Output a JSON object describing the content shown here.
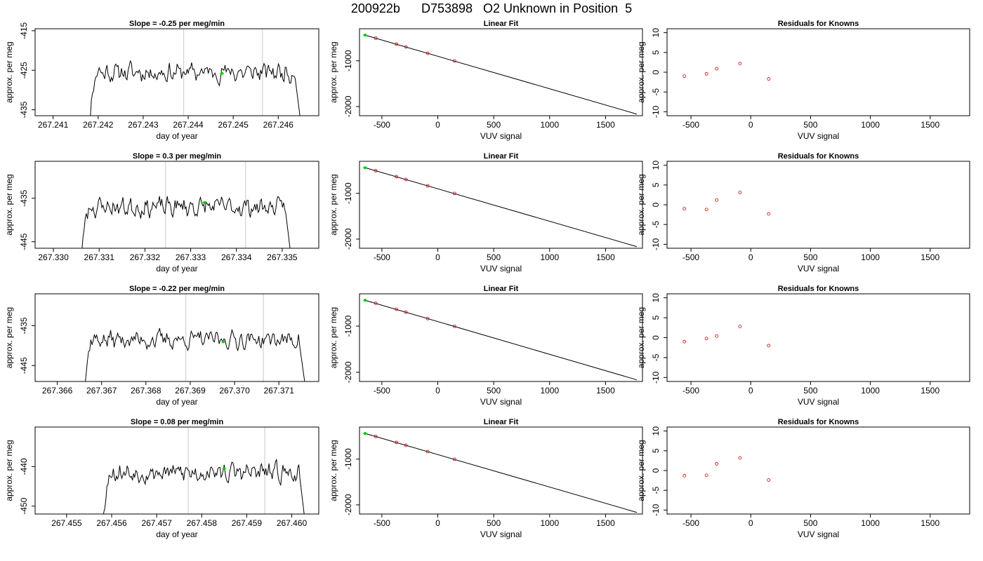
{
  "figure_title": "200922b      D753898   O2 Unknown in Position  5",
  "colors": {
    "trace": "#000000",
    "unknown_point": "#00cc00",
    "known_point": "#cc0000",
    "vline": "#c8c8c8",
    "fit_line": "#000000"
  },
  "chart_data": [
    {
      "id": "r1-time",
      "type": "line",
      "title": "Slope =  -0.25  per meg/min",
      "xlabel": "day of year",
      "ylabel": "approx. per meg",
      "xlim": [
        267.2406,
        267.2469
      ],
      "ylim": [
        -436.5,
        -414.5
      ],
      "xticks": [
        267.241,
        267.242,
        267.243,
        267.244,
        267.245,
        267.246
      ],
      "xtick_labels": [
        "267.241",
        "267.242",
        "267.243",
        "267.244",
        "267.245",
        "267.246"
      ],
      "yticks": [
        -415,
        -425,
        -435
      ],
      "ytick_labels": [
        "-415",
        "-425",
        "-435"
      ],
      "trace": {
        "x_start": 267.2418,
        "x_end": 267.2465,
        "base": -425.5,
        "amp": 3.2,
        "seed": 11
      },
      "vlines": [
        267.2439,
        267.24565
      ],
      "unknown_point": {
        "x": 267.24475,
        "y": -425.8
      }
    },
    {
      "id": "r1-fit",
      "type": "scatter",
      "title": "Linear Fit",
      "xlabel": "VUV signal",
      "ylabel": "approx. per meg",
      "xlim": [
        -700,
        1830
      ],
      "ylim": [
        -2200,
        -300
      ],
      "xticks": [
        -500,
        0,
        500,
        1000,
        1500
      ],
      "xtick_labels": [
        "-500",
        "0",
        "500",
        "1000",
        "1500"
      ],
      "yticks": [
        -1000,
        -2000
      ],
      "ytick_labels": [
        "-1000",
        "-2000"
      ],
      "fit_line": {
        "x": [
          -650,
          1780
        ],
        "y": [
          -440,
          -2165
        ]
      },
      "known_points": {
        "x": [
          -555,
          -370,
          -285,
          -90,
          150
        ],
        "y": [
          -505,
          -636,
          -697,
          -836,
          -1003
        ]
      },
      "unknown_point": {
        "x": -650,
        "y": -440
      }
    },
    {
      "id": "r1-res",
      "type": "scatter",
      "title": "Residuals for Knowns",
      "xlabel": "VUV signal",
      "ylabel": "approx. per meg",
      "xlim": [
        -700,
        1830
      ],
      "ylim": [
        -11,
        11
      ],
      "xticks": [
        -500,
        0,
        500,
        1000,
        1500
      ],
      "xtick_labels": [
        "-500",
        "0",
        "500",
        "1000",
        "1500"
      ],
      "yticks": [
        10,
        5,
        0,
        -5,
        -10
      ],
      "ytick_labels": [
        "10",
        "5",
        "0",
        "-5",
        "-10"
      ],
      "known_points": {
        "x": [
          -555,
          -370,
          -285,
          -90,
          150
        ],
        "y": [
          -1.0,
          -0.4,
          0.9,
          2.2,
          -1.7
        ]
      }
    },
    {
      "id": "r2-time",
      "type": "line",
      "title": "Slope =  0.3  per meg/min",
      "xlabel": "day of year",
      "ylabel": "approx. per meg",
      "xlim": [
        267.3296,
        267.3358
      ],
      "ylim": [
        -446.5,
        -426.5
      ],
      "xticks": [
        267.33,
        267.331,
        267.332,
        267.333,
        267.334,
        267.335
      ],
      "xtick_labels": [
        "267.330",
        "267.331",
        "267.332",
        "267.333",
        "267.334",
        "267.335"
      ],
      "yticks": [
        -435,
        -445
      ],
      "ytick_labels": [
        "-435",
        "-445"
      ],
      "trace": {
        "x_start": 267.3306,
        "x_end": 267.3352,
        "base": -437.0,
        "amp": 3.0,
        "seed": 23
      },
      "vlines": [
        267.33245,
        267.3342
      ],
      "unknown_point": {
        "x": 267.3333,
        "y": -436.0
      }
    },
    {
      "id": "r2-fit",
      "type": "scatter",
      "title": "Linear Fit",
      "xlabel": "VUV signal",
      "ylabel": "approx. per meg",
      "xlim": [
        -700,
        1830
      ],
      "ylim": [
        -2200,
        -300
      ],
      "xticks": [
        -500,
        0,
        500,
        1000,
        1500
      ],
      "xtick_labels": [
        "-500",
        "0",
        "500",
        "1000",
        "1500"
      ],
      "yticks": [
        -1000,
        -2000
      ],
      "ytick_labels": [
        "-1000",
        "-2000"
      ],
      "fit_line": {
        "x": [
          -650,
          1780
        ],
        "y": [
          -440,
          -2165
        ]
      },
      "known_points": {
        "x": [
          -555,
          -370,
          -285,
          -90,
          150
        ],
        "y": [
          -505,
          -636,
          -697,
          -836,
          -1003
        ]
      },
      "unknown_point": {
        "x": -650,
        "y": -440
      }
    },
    {
      "id": "r2-res",
      "type": "scatter",
      "title": "Residuals for Knowns",
      "xlabel": "VUV signal",
      "ylabel": "approx. per meg",
      "xlim": [
        -700,
        1830
      ],
      "ylim": [
        -11,
        11
      ],
      "xticks": [
        -500,
        0,
        500,
        1000,
        1500
      ],
      "xtick_labels": [
        "-500",
        "0",
        "500",
        "1000",
        "1500"
      ],
      "yticks": [
        10,
        5,
        0,
        -5,
        -10
      ],
      "ytick_labels": [
        "10",
        "5",
        "0",
        "-5",
        "-10"
      ],
      "known_points": {
        "x": [
          -555,
          -370,
          -285,
          -90,
          150
        ],
        "y": [
          -1.0,
          -1.2,
          1.2,
          3.1,
          -2.3
        ]
      }
    },
    {
      "id": "r3-time",
      "type": "line",
      "title": "Slope =  -0.22  per meg/min",
      "xlabel": "day of year",
      "ylabel": "approx. per meg",
      "xlim": [
        267.3655,
        267.3719
      ],
      "ylim": [
        -449,
        -427
      ],
      "xticks": [
        267.366,
        267.367,
        267.368,
        267.369,
        267.37,
        267.371
      ],
      "xtick_labels": [
        "267.366",
        "267.367",
        "267.368",
        "267.369",
        "267.370",
        "267.371"
      ],
      "yticks": [
        -435,
        -445
      ],
      "ytick_labels": [
        "-435",
        "-445"
      ],
      "trace": {
        "x_start": 267.3666,
        "x_end": 267.3716,
        "base": -438.5,
        "amp": 3.0,
        "seed": 37
      },
      "vlines": [
        267.3689,
        267.37065
      ],
      "unknown_point": {
        "x": 267.36975,
        "y": -439.0
      }
    },
    {
      "id": "r3-fit",
      "type": "scatter",
      "title": "Linear Fit",
      "xlabel": "VUV signal",
      "ylabel": "approx. per meg",
      "xlim": [
        -700,
        1830
      ],
      "ylim": [
        -2200,
        -300
      ],
      "xticks": [
        -500,
        0,
        500,
        1000,
        1500
      ],
      "xtick_labels": [
        "-500",
        "0",
        "500",
        "1000",
        "1500"
      ],
      "yticks": [
        -1000,
        -2000
      ],
      "ytick_labels": [
        "-1000",
        "-2000"
      ],
      "fit_line": {
        "x": [
          -650,
          1780
        ],
        "y": [
          -440,
          -2165
        ]
      },
      "known_points": {
        "x": [
          -555,
          -370,
          -285,
          -90,
          150
        ],
        "y": [
          -505,
          -636,
          -697,
          -836,
          -1003
        ]
      },
      "unknown_point": {
        "x": -650,
        "y": -440
      }
    },
    {
      "id": "r3-res",
      "type": "scatter",
      "title": "Residuals for Knowns",
      "xlabel": "VUV signal",
      "ylabel": "approx. per meg",
      "xlim": [
        -700,
        1830
      ],
      "ylim": [
        -11,
        11
      ],
      "xticks": [
        -500,
        0,
        500,
        1000,
        1500
      ],
      "xtick_labels": [
        "-500",
        "0",
        "500",
        "1000",
        "1500"
      ],
      "yticks": [
        10,
        5,
        0,
        -5,
        -10
      ],
      "ytick_labels": [
        "10",
        "5",
        "0",
        "-5",
        "-10"
      ],
      "known_points": {
        "x": [
          -555,
          -370,
          -285,
          -90,
          150
        ],
        "y": [
          -1.0,
          -0.2,
          0.4,
          2.8,
          -2.0
        ]
      }
    },
    {
      "id": "r4-time",
      "type": "line",
      "title": "Slope =  0.08  per meg/min",
      "xlabel": "day of year",
      "ylabel": "approx. per meg",
      "xlim": [
        267.4543,
        267.4606
      ],
      "ylim": [
        -452,
        -430
      ],
      "xticks": [
        267.455,
        267.456,
        267.457,
        267.458,
        267.459,
        267.46
      ],
      "xtick_labels": [
        "267.455",
        "267.456",
        "267.457",
        "267.458",
        "267.459",
        "267.460"
      ],
      "yticks": [
        -440,
        -450
      ],
      "ytick_labels": [
        "-440",
        "-450"
      ],
      "trace": {
        "x_start": 267.4558,
        "x_end": 267.4603,
        "base": -441.5,
        "amp": 3.2,
        "seed": 53
      },
      "vlines": [
        267.4577,
        267.4594
      ],
      "unknown_point": {
        "x": 267.4585,
        "y": -440.5
      }
    },
    {
      "id": "r4-fit",
      "type": "scatter",
      "title": "Linear Fit",
      "xlabel": "VUV signal",
      "ylabel": "approx. per meg",
      "xlim": [
        -700,
        1830
      ],
      "ylim": [
        -2200,
        -300
      ],
      "xticks": [
        -500,
        0,
        500,
        1000,
        1500
      ],
      "xtick_labels": [
        "-500",
        "0",
        "500",
        "1000",
        "1500"
      ],
      "yticks": [
        -1000,
        -2000
      ],
      "ytick_labels": [
        "-1000",
        "-2000"
      ],
      "fit_line": {
        "x": [
          -650,
          1780
        ],
        "y": [
          -440,
          -2165
        ]
      },
      "known_points": {
        "x": [
          -555,
          -370,
          -285,
          -90,
          150
        ],
        "y": [
          -505,
          -636,
          -697,
          -836,
          -1003
        ]
      },
      "unknown_point": {
        "x": -650,
        "y": -440
      }
    },
    {
      "id": "r4-res",
      "type": "scatter",
      "title": "Residuals for Knowns",
      "xlabel": "VUV signal",
      "ylabel": "approx. per meg",
      "xlim": [
        -700,
        1830
      ],
      "ylim": [
        -11,
        11
      ],
      "xticks": [
        -500,
        0,
        500,
        1000,
        1500
      ],
      "xtick_labels": [
        "-500",
        "0",
        "500",
        "1000",
        "1500"
      ],
      "yticks": [
        10,
        5,
        0,
        -5,
        -10
      ],
      "ytick_labels": [
        "10",
        "5",
        "0",
        "-5",
        "-10"
      ],
      "known_points": {
        "x": [
          -555,
          -370,
          -285,
          -90,
          150
        ],
        "y": [
          -1.3,
          -1.2,
          1.7,
          3.2,
          -2.4
        ]
      }
    }
  ]
}
